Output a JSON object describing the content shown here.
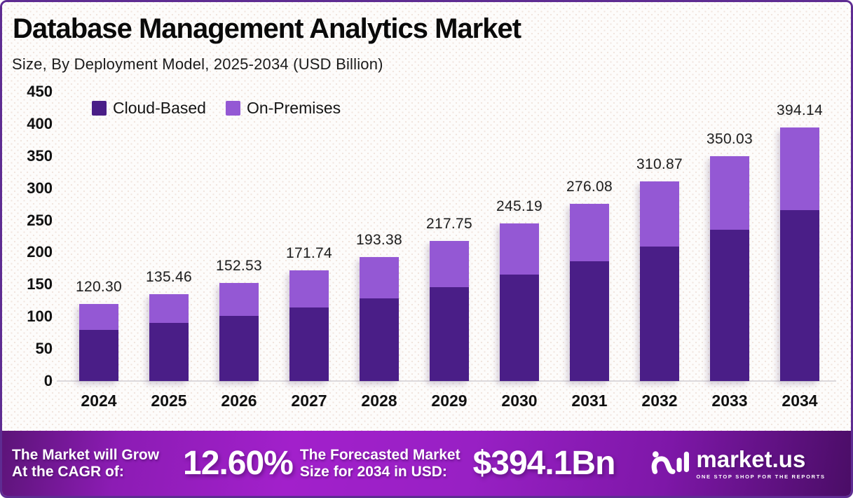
{
  "header": {
    "title": "Database Management Analytics Market",
    "subtitle": "Size, By Deployment Model, 2025-2034 (USD Billion)"
  },
  "chart_data": {
    "type": "bar",
    "stacked": true,
    "title": "Database Management Analytics Market",
    "subtitle": "Size, By Deployment Model, 2025-2034 (USD Billion)",
    "unit": "USD Billion",
    "categories": [
      "2024",
      "2025",
      "2026",
      "2027",
      "2028",
      "2029",
      "2030",
      "2031",
      "2032",
      "2033",
      "2034"
    ],
    "series": [
      {
        "name": "Cloud-Based",
        "color": "#4a1e87",
        "values": [
          80.0,
          90.5,
          101.5,
          114.2,
          128.5,
          146.0,
          165.5,
          186.3,
          209.3,
          235.0,
          266.0
        ]
      },
      {
        "name": "On-Premises",
        "color": "#9458d4",
        "values": [
          40.3,
          44.96,
          51.03,
          57.54,
          64.88,
          71.75,
          79.69,
          89.78,
          101.57,
          115.03,
          128.14
        ]
      }
    ],
    "totals": [
      120.3,
      135.46,
      152.53,
      171.74,
      193.38,
      217.75,
      245.19,
      276.08,
      310.87,
      350.03,
      394.14
    ],
    "total_labels": [
      "120.30",
      "135.46",
      "152.53",
      "171.74",
      "193.38",
      "217.75",
      "245.19",
      "276.08",
      "310.87",
      "350.03",
      "394.14"
    ],
    "ylim": [
      0,
      450
    ],
    "yticks": [
      450,
      400,
      350,
      300,
      250,
      200,
      150,
      100,
      50,
      0
    ],
    "grid": false,
    "legend_position": "top-left"
  },
  "footer": {
    "cagr_label_line1": "The Market will Grow",
    "cagr_label_line2": "At the CAGR of:",
    "cagr_value": "12.60%",
    "forecast_label_line1": "The Forecasted Market",
    "forecast_label_line2": "Size for 2034 in USD:",
    "forecast_value": "$394.1Bn",
    "brand": {
      "name": "market.us",
      "tagline": "ONE STOP SHOP FOR THE REPORTS"
    }
  },
  "colors": {
    "bar_cloud": "#4a1e87",
    "bar_onprem": "#9458d4",
    "border": "#5e2c92",
    "background": "#fdfcfb",
    "axis_line": "#dcd9dc",
    "footer_gradient": [
      "#5c1478",
      "#a220cb",
      "#4a0d66"
    ],
    "footer_text": "#ffffff",
    "title_text": "#0a0a0a"
  }
}
